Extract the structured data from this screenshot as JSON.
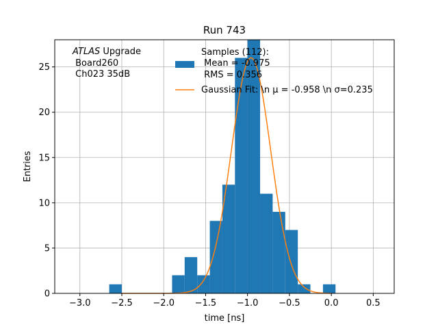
{
  "chart_data": {
    "type": "bar",
    "title": "Run 743",
    "xlabel": "time [ns]",
    "ylabel": "Entries",
    "xlim": [
      -3.3,
      0.75
    ],
    "ylim": [
      0,
      28
    ],
    "xticks": [
      -3.0,
      -2.5,
      -2.0,
      -1.5,
      -1.0,
      -0.5,
      0.0,
      0.5
    ],
    "xtick_labels": [
      "−3.0",
      "−2.5",
      "−2.0",
      "−1.5",
      "−1.0",
      "−0.5",
      "0.0",
      "0.5"
    ],
    "yticks": [
      0,
      5,
      10,
      15,
      20,
      25
    ],
    "ytick_labels": [
      "0",
      "5",
      "10",
      "15",
      "20",
      "25"
    ],
    "grid": true,
    "histogram": {
      "bin_edges": [
        -2.65,
        -2.5,
        -2.35,
        -2.2,
        -2.05,
        -1.9,
        -1.75,
        -1.6,
        -1.45,
        -1.3,
        -1.15,
        -1.0,
        -0.85,
        -0.7,
        -0.55,
        -0.4,
        -0.25,
        -0.1,
        0.05
      ],
      "counts": [
        1,
        0,
        0,
        0,
        0,
        2,
        4,
        2,
        8,
        12,
        26,
        28,
        11,
        9,
        7,
        1,
        0,
        1
      ],
      "color": "#1f77b4"
    },
    "fit": {
      "mu": -0.958,
      "sigma": 0.235,
      "amplitude": 26,
      "x_range": [
        -2.5,
        0.0
      ],
      "color": "#ff7f0e"
    },
    "legend": {
      "position": "upper-right",
      "samples_lines": [
        "Samples (112):",
        " Mean = -0.975",
        " RMS = 0.356"
      ],
      "fit_label": "Gaussian Fit: \\n μ = -0.958 \\n σ=0.235"
    },
    "annotation": {
      "atlas_italic": "ATLAS",
      "atlas_rest": " Upgrade",
      "line2": " Board260",
      "line3": " Ch023 35dB"
    }
  }
}
